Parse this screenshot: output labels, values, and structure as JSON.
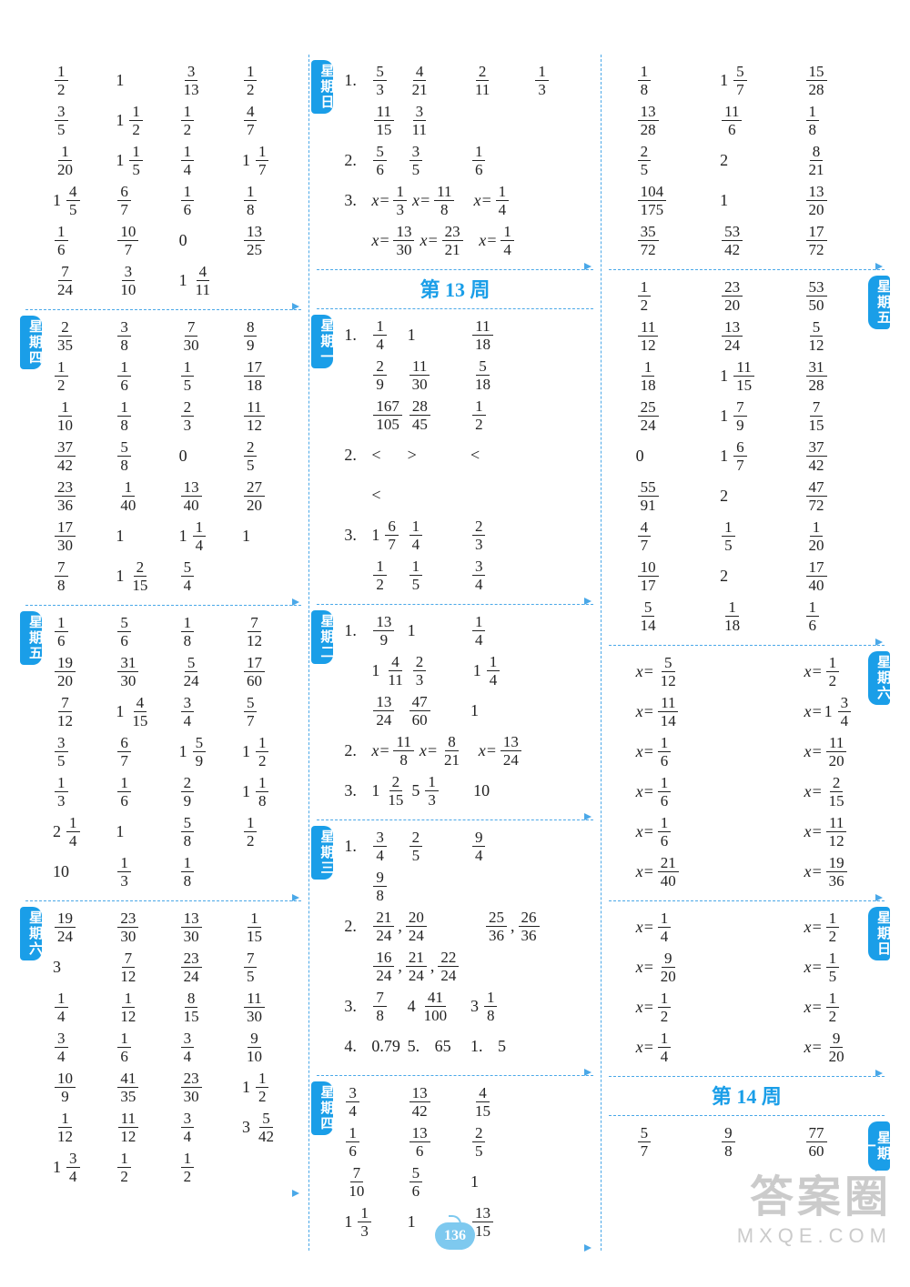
{
  "page_number": "136",
  "watermark": {
    "line1": "答案圈",
    "line2": "MXQE.COM"
  },
  "colors": {
    "accent": "#1a9ee8",
    "dashed": "#4aa8e8",
    "text": "#222222",
    "bg": "#ffffff"
  },
  "columns": {
    "left": [
      {
        "rows": [
          [
            "1/2",
            "1",
            "3/13",
            "1/2"
          ],
          [
            "3/5",
            "1 1/2",
            "1/2",
            "4/7"
          ],
          [
            "1/20",
            "1 1/5",
            "1/4",
            "1 1/7"
          ],
          [
            "1 4/5",
            "6/7",
            "1/6",
            "1/8"
          ],
          [
            "1/6",
            "10/7",
            "0",
            "13/25"
          ],
          [
            "7/24",
            "3/10",
            "1 4/11",
            ""
          ]
        ]
      },
      {
        "day": "星期四",
        "rows": [
          [
            "2/35",
            "3/8",
            "7/30",
            "8/9"
          ],
          [
            "1/2",
            "1/6",
            "1/5",
            "17/18"
          ],
          [
            "1/10",
            "1/8",
            "2/3",
            "11/12"
          ],
          [
            "37/42",
            "5/8",
            "0",
            "2/5"
          ],
          [
            "23/36",
            "1/40",
            "13/40",
            "27/20"
          ],
          [
            "17/30",
            "1",
            "1 1/4",
            "1"
          ],
          [
            "7/8",
            "1 2/15",
            "5/4",
            ""
          ]
        ]
      },
      {
        "day": "星期五",
        "rows": [
          [
            "1/6",
            "5/6",
            "1/8",
            "7/12"
          ],
          [
            "19/20",
            "31/30",
            "5/24",
            "17/60"
          ],
          [
            "7/12",
            "1 4/15",
            "3/4",
            "5/7"
          ],
          [
            "3/5",
            "6/7",
            "1 5/9",
            "1 1/2"
          ],
          [
            "1/3",
            "1/6",
            "2/9",
            "1 1/8"
          ],
          [
            "2 1/4",
            "1",
            "5/8",
            "1/2"
          ],
          [
            "10",
            "1/3",
            "1/8",
            ""
          ]
        ]
      },
      {
        "day": "星期六",
        "rows": [
          [
            "19/24",
            "23/30",
            "13/30",
            "1/15"
          ],
          [
            "3",
            "7/12",
            "23/24",
            "7/5"
          ],
          [
            "1/4",
            "1/12",
            "8/15",
            "11/30"
          ],
          [
            "3/4",
            "1/6",
            "3/4",
            "9/10"
          ],
          [
            "10/9",
            "41/35",
            "23/30",
            "1 1/2"
          ],
          [
            "1/12",
            "11/12",
            "3/4",
            "3 5/42"
          ],
          [
            "1 3/4",
            "1/2",
            "1/2",
            ""
          ]
        ]
      }
    ],
    "middle": [
      {
        "day": "星期日",
        "rows": [
          [
            "1.  5/3",
            "4/21",
            "2/11",
            "1/3"
          ],
          [
            "    11/15",
            "3/11",
            "",
            ""
          ],
          [
            "2.  5/6",
            "3/5",
            "1/6",
            ""
          ],
          [
            "3.  x=1/3",
            "x=11/8",
            "x=1/4",
            ""
          ],
          [
            "    x=13/30",
            "x=23/21",
            "x=1/4",
            ""
          ]
        ]
      },
      {
        "header": "第 13 周"
      },
      {
        "day": "星期一",
        "rows": [
          [
            "1.  1/4",
            "1",
            "11/18",
            ""
          ],
          [
            "    2/9",
            "11/30",
            "5/18",
            ""
          ],
          [
            "    167/105",
            "28/45",
            "1/2",
            ""
          ],
          [
            "2.  <",
            ">",
            "<",
            ""
          ],
          [
            "    <",
            "",
            "",
            ""
          ],
          [
            "3.  1 6/7",
            "1/4",
            "2/3",
            ""
          ],
          [
            "    1/2",
            "1/5",
            "3/4",
            ""
          ]
        ]
      },
      {
        "day": "星期二",
        "rows": [
          [
            "1.  13/9",
            "1",
            "1/4",
            ""
          ],
          [
            "    1 4/11",
            "2/3",
            "1 1/4",
            ""
          ],
          [
            "    13/24",
            "47/60",
            "1",
            ""
          ],
          [
            "2.  x=11/8",
            "x=8/21",
            "x=13/24",
            ""
          ],
          [
            "3.  1 2/15",
            "5 1/3",
            "10",
            ""
          ]
        ]
      },
      {
        "day": "星期三",
        "rows": [
          [
            "1.  3/4",
            "2/5",
            "9/4",
            ""
          ],
          [
            "    9/8",
            "",
            "",
            ""
          ],
          [
            "2.  21/24 , 20/24",
            "",
            "25/36 , 26/36",
            ""
          ],
          [
            "    16/24 , 21/24 , 22/24",
            "",
            "",
            ""
          ],
          [
            "3.  7/8",
            "4 41/100",
            "3 1/8",
            ""
          ],
          [
            "4.  0.79",
            "5.65",
            "1.5",
            ""
          ]
        ]
      },
      {
        "day": "星期四",
        "rows": [
          [
            "3/4",
            "13/42",
            "4/15",
            ""
          ],
          [
            "1/6",
            "13/6",
            "2/5",
            ""
          ],
          [
            "7/10",
            "5/6",
            "1",
            ""
          ],
          [
            "1 1/3",
            "1",
            "13/15",
            ""
          ]
        ]
      }
    ],
    "right": [
      {
        "rows": [
          [
            "1/8",
            "1 5/7",
            "15/28"
          ],
          [
            "13/28",
            "11/6",
            "1/8"
          ],
          [
            "2/5",
            "2",
            "8/21"
          ],
          [
            "104/175",
            "1",
            "13/20"
          ],
          [
            "35/72",
            "53/42",
            "17/72"
          ]
        ]
      },
      {
        "day": "星期五",
        "tab_side": "r",
        "rows": [
          [
            "1/2",
            "23/20",
            "53/50"
          ],
          [
            "11/12",
            "13/24",
            "5/12"
          ],
          [
            "1/18",
            "1 11/15",
            "31/28"
          ],
          [
            "25/24",
            "1 7/9",
            "7/15"
          ],
          [
            "0",
            "1 6/7",
            "37/42"
          ],
          [
            "55/91",
            "2",
            "47/72"
          ],
          [
            "4/7",
            "1/5",
            "1/20"
          ],
          [
            "10/17",
            "2",
            "17/40"
          ],
          [
            "5/14",
            "1/18",
            "1/6"
          ]
        ]
      },
      {
        "day": "星期六",
        "tab_side": "r",
        "rows": [
          [
            "x=5/12",
            "",
            "x=1/2"
          ],
          [
            "x=11/14",
            "",
            "x=1 3/4"
          ],
          [
            "x=1/6",
            "",
            "x=11/20"
          ],
          [
            "x=1/6",
            "",
            "x=2/15"
          ],
          [
            "x=1/6",
            "",
            "x=11/12"
          ],
          [
            "x=21/40",
            "",
            "x=19/36"
          ]
        ]
      },
      {
        "day": "星期日",
        "tab_side": "r",
        "rows": [
          [
            "x=1/4",
            "",
            "x=1/2"
          ],
          [
            "x=9/20",
            "",
            "x=1/5"
          ],
          [
            "x=1/2",
            "",
            "x=1/2"
          ],
          [
            "x=1/4",
            "",
            "x=9/20"
          ]
        ]
      },
      {
        "header": "第 14 周"
      },
      {
        "day": "星期一",
        "tab_side": "r",
        "rows": [
          [
            "5/7",
            "9/8",
            "77/60"
          ]
        ]
      }
    ]
  }
}
